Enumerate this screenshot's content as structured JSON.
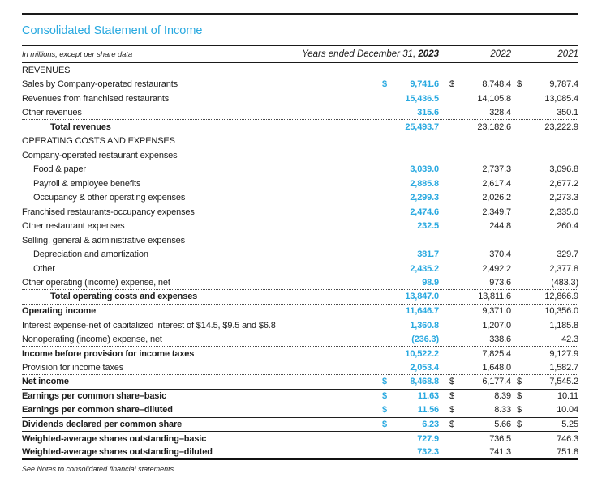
{
  "page": {
    "title": "Consolidated Statement of Income",
    "footnote": "See Notes to consolidated financial statements.",
    "colors": {
      "accent": "#29A9E0",
      "text": "#1C1C1C",
      "rule": "#1A1A1A"
    }
  },
  "table": {
    "header": {
      "caption": "In millions, except per share data",
      "period_label": "Years ended December 31,",
      "years": [
        "2023",
        "2022",
        "2021"
      ]
    },
    "rows": [
      {
        "label": "REVENUES",
        "style": "section",
        "indent": 0,
        "dollar": false,
        "values": [
          "",
          "",
          ""
        ],
        "border": "none"
      },
      {
        "label": "Sales by Company-operated restaurants",
        "style": "item",
        "indent": 0,
        "dollar": true,
        "values": [
          "9,741.6",
          "8,748.4",
          "9,787.4"
        ],
        "border": "none"
      },
      {
        "label": "Revenues from franchised restaurants",
        "style": "item",
        "indent": 0,
        "dollar": false,
        "values": [
          "15,436.5",
          "14,105.8",
          "13,085.4"
        ],
        "border": "none"
      },
      {
        "label": "Other revenues",
        "style": "item",
        "indent": 0,
        "dollar": false,
        "values": [
          "315.6",
          "328.4",
          "350.1"
        ],
        "border": "dotted"
      },
      {
        "label": "Total revenues",
        "style": "total",
        "indent": 2,
        "dollar": false,
        "values": [
          "25,493.7",
          "23,182.6",
          "23,222.9"
        ],
        "border": "none"
      },
      {
        "label": "OPERATING COSTS AND EXPENSES",
        "style": "section",
        "indent": 0,
        "dollar": false,
        "values": [
          "",
          "",
          ""
        ],
        "border": "none"
      },
      {
        "label": "Company-operated restaurant expenses",
        "style": "item",
        "indent": 0,
        "dollar": false,
        "values": [
          "",
          "",
          ""
        ],
        "border": "none"
      },
      {
        "label": "Food & paper",
        "style": "item",
        "indent": 1,
        "dollar": false,
        "values": [
          "3,039.0",
          "2,737.3",
          "3,096.8"
        ],
        "border": "none"
      },
      {
        "label": "Payroll & employee benefits",
        "style": "item",
        "indent": 1,
        "dollar": false,
        "values": [
          "2,885.8",
          "2,617.4",
          "2,677.2"
        ],
        "border": "none"
      },
      {
        "label": "Occupancy & other operating expenses",
        "style": "item",
        "indent": 1,
        "dollar": false,
        "values": [
          "2,299.3",
          "2,026.2",
          "2,273.3"
        ],
        "border": "none"
      },
      {
        "label": "Franchised restaurants-occupancy expenses",
        "style": "item",
        "indent": 0,
        "dollar": false,
        "values": [
          "2,474.6",
          "2,349.7",
          "2,335.0"
        ],
        "border": "none"
      },
      {
        "label": "Other restaurant expenses",
        "style": "item",
        "indent": 0,
        "dollar": false,
        "values": [
          "232.5",
          "244.8",
          "260.4"
        ],
        "border": "none"
      },
      {
        "label": "Selling, general & administrative expenses",
        "style": "item",
        "indent": 0,
        "dollar": false,
        "values": [
          "",
          "",
          ""
        ],
        "border": "none"
      },
      {
        "label": "Depreciation and amortization",
        "style": "item",
        "indent": 1,
        "dollar": false,
        "values": [
          "381.7",
          "370.4",
          "329.7"
        ],
        "border": "none"
      },
      {
        "label": "Other",
        "style": "item",
        "indent": 1,
        "dollar": false,
        "values": [
          "2,435.2",
          "2,492.2",
          "2,377.8"
        ],
        "border": "none"
      },
      {
        "label": "Other operating (income) expense, net",
        "style": "item",
        "indent": 0,
        "dollar": false,
        "values": [
          "98.9",
          "973.6",
          "(483.3)"
        ],
        "border": "dotted"
      },
      {
        "label": "Total operating costs and expenses",
        "style": "total",
        "indent": 2,
        "dollar": false,
        "values": [
          "13,847.0",
          "13,811.6",
          "12,866.9"
        ],
        "border": "dotted"
      },
      {
        "label": "Operating income",
        "style": "bold",
        "indent": 0,
        "dollar": false,
        "values": [
          "11,646.7",
          "9,371.0",
          "10,356.0"
        ],
        "border": "dotted"
      },
      {
        "label": "Interest expense-net of capitalized interest of $14.5, $9.5 and $6.8",
        "style": "item",
        "indent": 0,
        "dollar": false,
        "values": [
          "1,360.8",
          "1,207.0",
          "1,185.8"
        ],
        "border": "none"
      },
      {
        "label": "Nonoperating (income) expense, net",
        "style": "item",
        "indent": 0,
        "dollar": false,
        "values": [
          "(236.3)",
          "338.6",
          "42.3"
        ],
        "border": "dotted"
      },
      {
        "label": "Income before provision for income taxes",
        "style": "bold",
        "indent": 0,
        "dollar": false,
        "values": [
          "10,522.2",
          "7,825.4",
          "9,127.9"
        ],
        "border": "none"
      },
      {
        "label": "Provision for income taxes",
        "style": "item",
        "indent": 0,
        "dollar": false,
        "values": [
          "2,053.4",
          "1,648.0",
          "1,582.7"
        ],
        "border": "dotted"
      },
      {
        "label": "Net income",
        "style": "bold",
        "indent": 0,
        "dollar": true,
        "values": [
          "8,468.8",
          "6,177.4",
          "7,545.2"
        ],
        "border": "solid"
      },
      {
        "label": "Earnings per common share–basic",
        "style": "bold",
        "indent": 0,
        "dollar": true,
        "values": [
          "11.63",
          "8.39",
          "10.11"
        ],
        "border": "solid"
      },
      {
        "label": "Earnings per common share–diluted",
        "style": "bold",
        "indent": 0,
        "dollar": true,
        "values": [
          "11.56",
          "8.33",
          "10.04"
        ],
        "border": "solid"
      },
      {
        "label": "Dividends declared per common share",
        "style": "bold",
        "indent": 0,
        "dollar": true,
        "values": [
          "6.23",
          "5.66",
          "5.25"
        ],
        "border": "solid"
      },
      {
        "label": "Weighted-average shares outstanding–basic",
        "style": "bold",
        "indent": 0,
        "dollar": false,
        "values": [
          "727.9",
          "736.5",
          "746.3"
        ],
        "border": "none"
      },
      {
        "label": "Weighted-average shares outstanding–diluted",
        "style": "bold",
        "indent": 0,
        "dollar": false,
        "values": [
          "732.3",
          "741.3",
          "751.8"
        ],
        "border": "solid2"
      }
    ]
  }
}
